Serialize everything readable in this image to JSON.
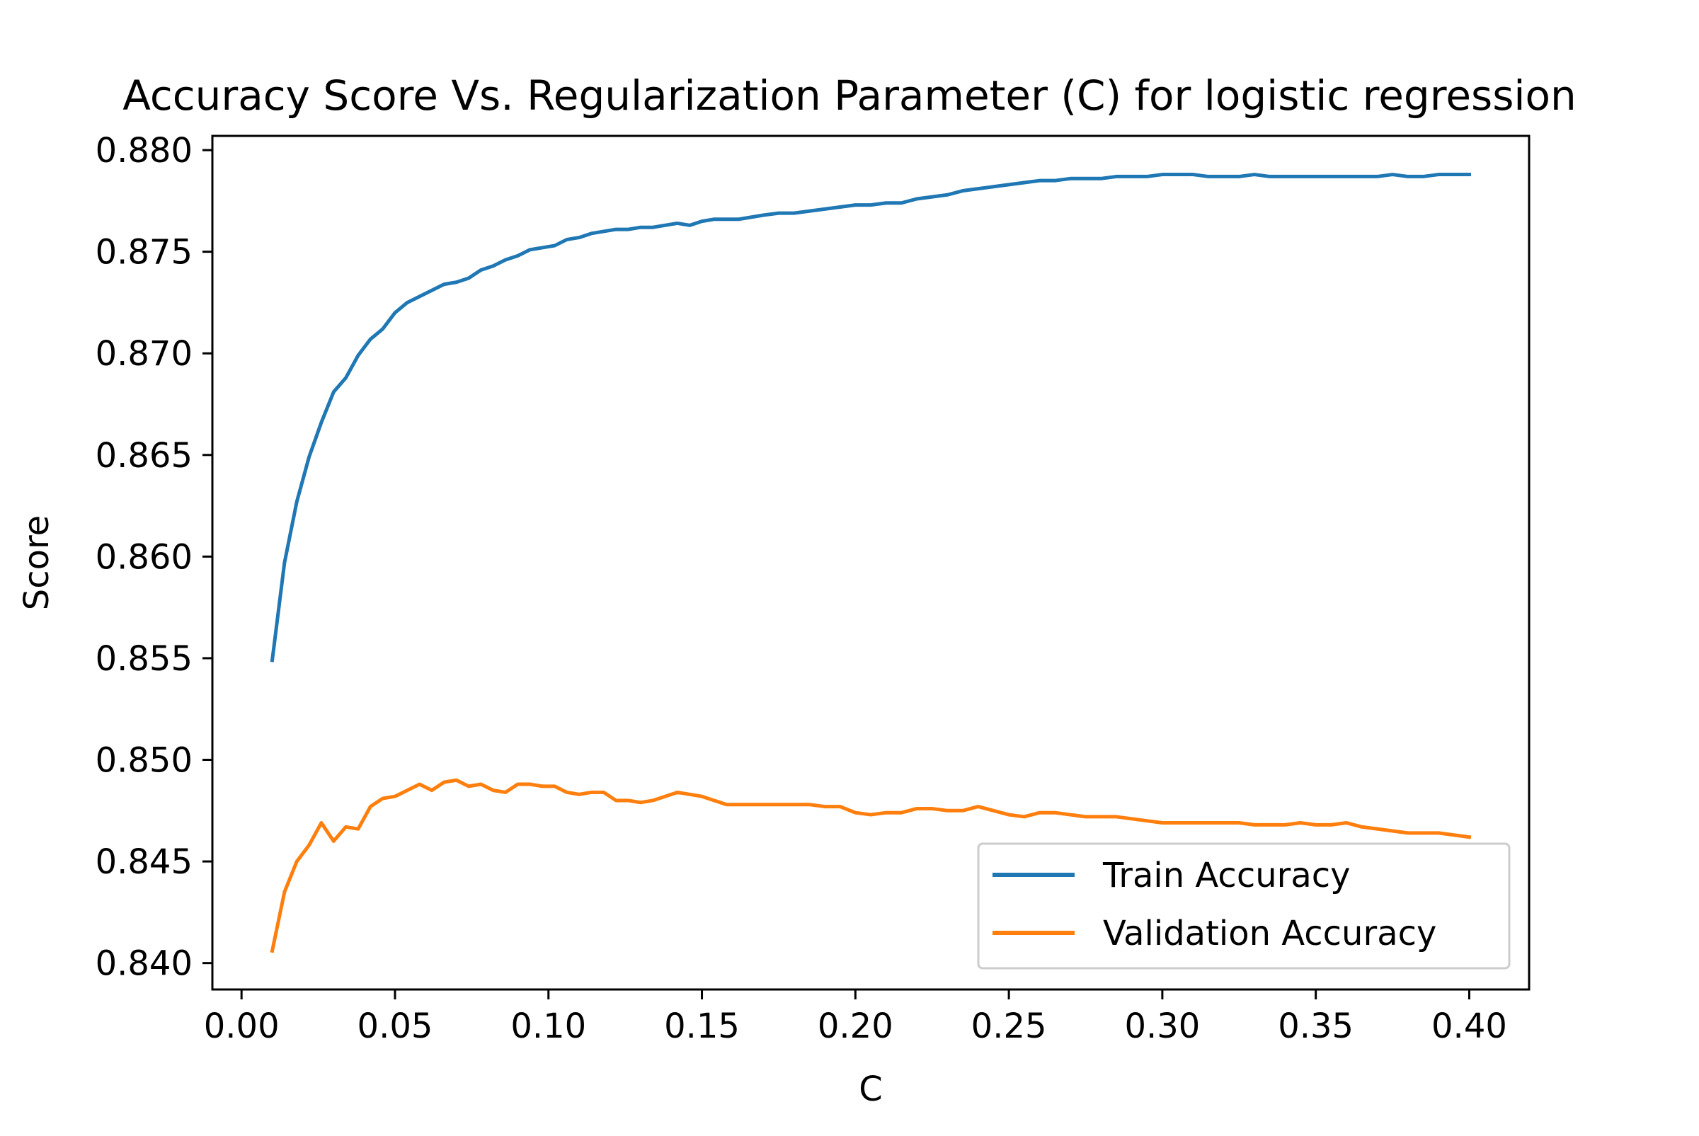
{
  "chart_data": {
    "type": "line",
    "title": "Accuracy Score Vs. Regularization Parameter (C) for logistic regression",
    "xlabel": "C",
    "ylabel": "Score",
    "xlim": [
      -0.0095,
      0.4195
    ],
    "ylim": [
      0.8387,
      0.8807
    ],
    "xticks": [
      {
        "value": 0.0,
        "label": "0.00"
      },
      {
        "value": 0.05,
        "label": "0.05"
      },
      {
        "value": 0.1,
        "label": "0.10"
      },
      {
        "value": 0.15,
        "label": "0.15"
      },
      {
        "value": 0.2,
        "label": "0.20"
      },
      {
        "value": 0.25,
        "label": "0.25"
      },
      {
        "value": 0.3,
        "label": "0.30"
      },
      {
        "value": 0.35,
        "label": "0.35"
      },
      {
        "value": 0.4,
        "label": "0.40"
      }
    ],
    "yticks": [
      {
        "value": 0.84,
        "label": "0.840"
      },
      {
        "value": 0.845,
        "label": "0.845"
      },
      {
        "value": 0.85,
        "label": "0.850"
      },
      {
        "value": 0.855,
        "label": "0.855"
      },
      {
        "value": 0.86,
        "label": "0.860"
      },
      {
        "value": 0.865,
        "label": "0.865"
      },
      {
        "value": 0.87,
        "label": "0.870"
      },
      {
        "value": 0.875,
        "label": "0.875"
      },
      {
        "value": 0.88,
        "label": "0.880"
      }
    ],
    "grid": false,
    "legend_position": "lower-right",
    "series": [
      {
        "name": "Train Accuracy",
        "color": "#1f77b4",
        "points": [
          [
            0.01,
            0.8549
          ],
          [
            0.014,
            0.8597
          ],
          [
            0.018,
            0.8627
          ],
          [
            0.022,
            0.8649
          ],
          [
            0.026,
            0.8666
          ],
          [
            0.03,
            0.8681
          ],
          [
            0.034,
            0.8688
          ],
          [
            0.038,
            0.8699
          ],
          [
            0.042,
            0.8707
          ],
          [
            0.046,
            0.8712
          ],
          [
            0.05,
            0.872
          ],
          [
            0.054,
            0.8725
          ],
          [
            0.058,
            0.8728
          ],
          [
            0.062,
            0.8731
          ],
          [
            0.066,
            0.8734
          ],
          [
            0.07,
            0.8735
          ],
          [
            0.074,
            0.8737
          ],
          [
            0.078,
            0.8741
          ],
          [
            0.082,
            0.8743
          ],
          [
            0.086,
            0.8746
          ],
          [
            0.09,
            0.8748
          ],
          [
            0.094,
            0.8751
          ],
          [
            0.098,
            0.8752
          ],
          [
            0.102,
            0.8753
          ],
          [
            0.106,
            0.8756
          ],
          [
            0.11,
            0.8757
          ],
          [
            0.114,
            0.8759
          ],
          [
            0.118,
            0.876
          ],
          [
            0.122,
            0.8761
          ],
          [
            0.126,
            0.8761
          ],
          [
            0.13,
            0.8762
          ],
          [
            0.134,
            0.8762
          ],
          [
            0.138,
            0.8763
          ],
          [
            0.142,
            0.8764
          ],
          [
            0.146,
            0.8763
          ],
          [
            0.15,
            0.8765
          ],
          [
            0.154,
            0.8766
          ],
          [
            0.158,
            0.8766
          ],
          [
            0.162,
            0.8766
          ],
          [
            0.166,
            0.8767
          ],
          [
            0.17,
            0.8768
          ],
          [
            0.175,
            0.8769
          ],
          [
            0.18,
            0.8769
          ],
          [
            0.185,
            0.877
          ],
          [
            0.19,
            0.8771
          ],
          [
            0.195,
            0.8772
          ],
          [
            0.2,
            0.8773
          ],
          [
            0.205,
            0.8773
          ],
          [
            0.21,
            0.8774
          ],
          [
            0.215,
            0.8774
          ],
          [
            0.22,
            0.8776
          ],
          [
            0.225,
            0.8777
          ],
          [
            0.23,
            0.8778
          ],
          [
            0.235,
            0.878
          ],
          [
            0.24,
            0.8781
          ],
          [
            0.245,
            0.8782
          ],
          [
            0.25,
            0.8783
          ],
          [
            0.255,
            0.8784
          ],
          [
            0.26,
            0.8785
          ],
          [
            0.265,
            0.8785
          ],
          [
            0.27,
            0.8786
          ],
          [
            0.275,
            0.8786
          ],
          [
            0.28,
            0.8786
          ],
          [
            0.285,
            0.8787
          ],
          [
            0.29,
            0.8787
          ],
          [
            0.295,
            0.8787
          ],
          [
            0.3,
            0.8788
          ],
          [
            0.305,
            0.8788
          ],
          [
            0.31,
            0.8788
          ],
          [
            0.315,
            0.8787
          ],
          [
            0.32,
            0.8787
          ],
          [
            0.325,
            0.8787
          ],
          [
            0.33,
            0.8788
          ],
          [
            0.335,
            0.8787
          ],
          [
            0.34,
            0.8787
          ],
          [
            0.345,
            0.8787
          ],
          [
            0.35,
            0.8787
          ],
          [
            0.355,
            0.8787
          ],
          [
            0.36,
            0.8787
          ],
          [
            0.365,
            0.8787
          ],
          [
            0.37,
            0.8787
          ],
          [
            0.375,
            0.8788
          ],
          [
            0.38,
            0.8787
          ],
          [
            0.385,
            0.8787
          ],
          [
            0.39,
            0.8788
          ],
          [
            0.395,
            0.8788
          ],
          [
            0.4,
            0.8788
          ]
        ]
      },
      {
        "name": "Validation Accuracy",
        "color": "#ff7f0e",
        "points": [
          [
            0.01,
            0.8406
          ],
          [
            0.014,
            0.8435
          ],
          [
            0.018,
            0.845
          ],
          [
            0.022,
            0.8458
          ],
          [
            0.026,
            0.8469
          ],
          [
            0.03,
            0.846
          ],
          [
            0.034,
            0.8467
          ],
          [
            0.038,
            0.8466
          ],
          [
            0.042,
            0.8477
          ],
          [
            0.046,
            0.8481
          ],
          [
            0.05,
            0.8482
          ],
          [
            0.054,
            0.8485
          ],
          [
            0.058,
            0.8488
          ],
          [
            0.062,
            0.8485
          ],
          [
            0.066,
            0.8489
          ],
          [
            0.07,
            0.849
          ],
          [
            0.074,
            0.8487
          ],
          [
            0.078,
            0.8488
          ],
          [
            0.082,
            0.8485
          ],
          [
            0.086,
            0.8484
          ],
          [
            0.09,
            0.8488
          ],
          [
            0.094,
            0.8488
          ],
          [
            0.098,
            0.8487
          ],
          [
            0.102,
            0.8487
          ],
          [
            0.106,
            0.8484
          ],
          [
            0.11,
            0.8483
          ],
          [
            0.114,
            0.8484
          ],
          [
            0.118,
            0.8484
          ],
          [
            0.122,
            0.848
          ],
          [
            0.126,
            0.848
          ],
          [
            0.13,
            0.8479
          ],
          [
            0.134,
            0.848
          ],
          [
            0.138,
            0.8482
          ],
          [
            0.142,
            0.8484
          ],
          [
            0.146,
            0.8483
          ],
          [
            0.15,
            0.8482
          ],
          [
            0.154,
            0.848
          ],
          [
            0.158,
            0.8478
          ],
          [
            0.162,
            0.8478
          ],
          [
            0.166,
            0.8478
          ],
          [
            0.17,
            0.8478
          ],
          [
            0.175,
            0.8478
          ],
          [
            0.18,
            0.8478
          ],
          [
            0.185,
            0.8478
          ],
          [
            0.19,
            0.8477
          ],
          [
            0.195,
            0.8477
          ],
          [
            0.2,
            0.8474
          ],
          [
            0.205,
            0.8473
          ],
          [
            0.21,
            0.8474
          ],
          [
            0.215,
            0.8474
          ],
          [
            0.22,
            0.8476
          ],
          [
            0.225,
            0.8476
          ],
          [
            0.23,
            0.8475
          ],
          [
            0.235,
            0.8475
          ],
          [
            0.24,
            0.8477
          ],
          [
            0.245,
            0.8475
          ],
          [
            0.25,
            0.8473
          ],
          [
            0.255,
            0.8472
          ],
          [
            0.26,
            0.8474
          ],
          [
            0.265,
            0.8474
          ],
          [
            0.27,
            0.8473
          ],
          [
            0.275,
            0.8472
          ],
          [
            0.28,
            0.8472
          ],
          [
            0.285,
            0.8472
          ],
          [
            0.29,
            0.8471
          ],
          [
            0.295,
            0.847
          ],
          [
            0.3,
            0.8469
          ],
          [
            0.305,
            0.8469
          ],
          [
            0.31,
            0.8469
          ],
          [
            0.315,
            0.8469
          ],
          [
            0.32,
            0.8469
          ],
          [
            0.325,
            0.8469
          ],
          [
            0.33,
            0.8468
          ],
          [
            0.335,
            0.8468
          ],
          [
            0.34,
            0.8468
          ],
          [
            0.345,
            0.8469
          ],
          [
            0.35,
            0.8468
          ],
          [
            0.355,
            0.8468
          ],
          [
            0.36,
            0.8469
          ],
          [
            0.365,
            0.8467
          ],
          [
            0.37,
            0.8466
          ],
          [
            0.375,
            0.8465
          ],
          [
            0.38,
            0.8464
          ],
          [
            0.385,
            0.8464
          ],
          [
            0.39,
            0.8464
          ],
          [
            0.395,
            0.8463
          ],
          [
            0.4,
            0.8462
          ]
        ]
      }
    ]
  }
}
